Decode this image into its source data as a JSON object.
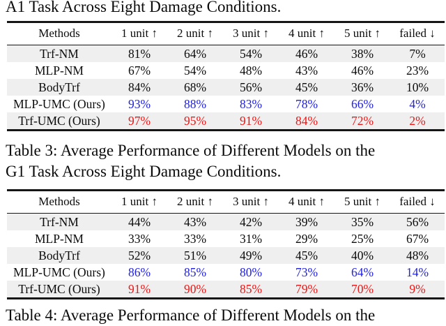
{
  "captions": {
    "top_fragment": "A1 Task Across Eight Damage Conditions.",
    "table3_lines": [
      "Table 3: Average Performance of Different Models on the",
      "G1 Task Across Eight Damage Conditions."
    ],
    "bottom_fragment": "Table 4: Average Performance of Different Models on the"
  },
  "columns": [
    "Methods",
    "1 unit ↑",
    "2 unit ↑",
    "3 unit ↑",
    "4 unit ↑",
    "5 unit ↑",
    "failed ↓"
  ],
  "tables": [
    {
      "task": "A1",
      "rows": [
        {
          "method": "Trf-NM",
          "values": [
            "81%",
            "64%",
            "54%",
            "46%",
            "38%",
            "7%"
          ]
        },
        {
          "method": "MLP-NM",
          "values": [
            "67%",
            "54%",
            "48%",
            "43%",
            "46%",
            "23%"
          ]
        },
        {
          "method": "BodyTrf",
          "values": [
            "84%",
            "68%",
            "56%",
            "45%",
            "36%",
            "10%"
          ]
        },
        {
          "method": "MLP-UMC (Ours)",
          "values": [
            "93%",
            "88%",
            "83%",
            "78%",
            "66%",
            "4%"
          ],
          "highlight": "blue"
        },
        {
          "method": "Trf-UMC (Ours)",
          "values": [
            "97%",
            "95%",
            "91%",
            "84%",
            "72%",
            "2%"
          ],
          "highlight": "red"
        }
      ]
    },
    {
      "task": "G1",
      "rows": [
        {
          "method": "Trf-NM",
          "values": [
            "44%",
            "43%",
            "42%",
            "39%",
            "35%",
            "56%"
          ]
        },
        {
          "method": "MLP-NM",
          "values": [
            "33%",
            "33%",
            "31%",
            "29%",
            "25%",
            "67%"
          ]
        },
        {
          "method": "BodyTrf",
          "values": [
            "52%",
            "51%",
            "49%",
            "45%",
            "40%",
            "48%"
          ]
        },
        {
          "method": "MLP-UMC (Ours)",
          "values": [
            "86%",
            "85%",
            "80%",
            "73%",
            "64%",
            "14%"
          ],
          "highlight": "blue"
        },
        {
          "method": "Trf-UMC (Ours)",
          "values": [
            "91%",
            "90%",
            "85%",
            "79%",
            "70%",
            "9%"
          ],
          "highlight": "red"
        }
      ]
    }
  ],
  "colors": {
    "accent_blue": "#2121e0",
    "accent_red": "#ea1717",
    "row_shade": "#efefef"
  }
}
